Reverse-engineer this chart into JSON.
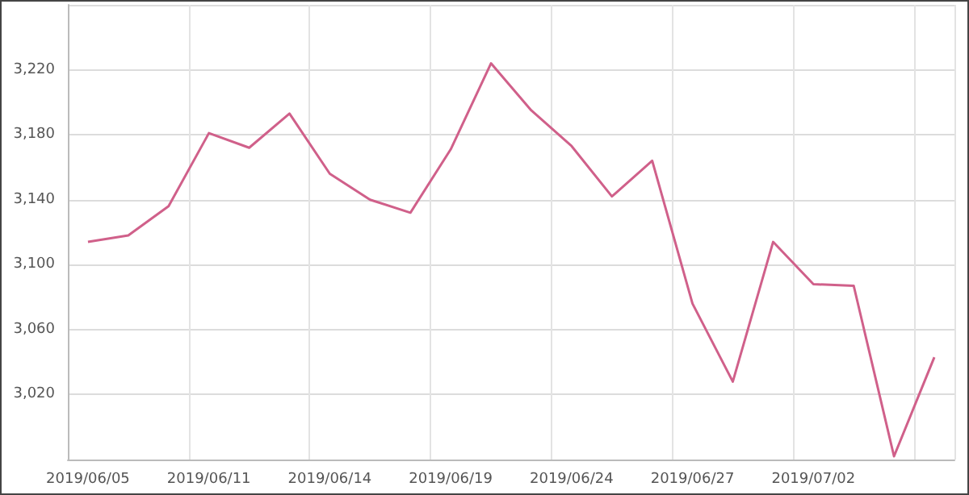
{
  "chart_data": {
    "type": "line",
    "categories": [
      "2019/06/05",
      null,
      null,
      "2019/06/11",
      null,
      null,
      "2019/06/14",
      null,
      null,
      "2019/06/19",
      null,
      null,
      "2019/06/24",
      null,
      null,
      "2019/06/27",
      null,
      null,
      "2019/07/02",
      null,
      null,
      null
    ],
    "series": [
      {
        "color": "#d0608a",
        "values": [
          3114,
          3118,
          3136,
          3181,
          3172,
          3193,
          3156,
          3140,
          3132,
          3171,
          3224,
          3195,
          3173,
          3142,
          3164,
          3076,
          3028,
          3114,
          3088,
          3087,
          2982,
          3043
        ]
      }
    ],
    "ylim": [
      2980,
      3260
    ],
    "yticks": [
      {
        "value": 2980,
        "label": null
      },
      {
        "value": 3020,
        "label": "3,020"
      },
      {
        "value": 3060,
        "label": "3,060"
      },
      {
        "value": 3100,
        "label": "3,100"
      },
      {
        "value": 3140,
        "label": "3,140"
      },
      {
        "value": 3180,
        "label": "3,180"
      },
      {
        "value": 3220,
        "label": "3,220"
      },
      {
        "value": 3260,
        "label": null
      }
    ],
    "grid": true,
    "marker": "none",
    "line_style": "solid"
  }
}
